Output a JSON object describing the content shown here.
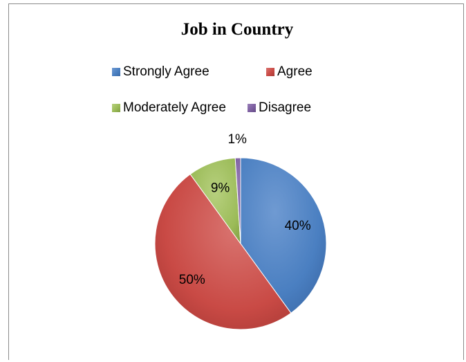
{
  "chart_data": {
    "type": "pie",
    "title": "Job in Country",
    "categories": [
      "Strongly Agree",
      "Agree",
      "Moderately Agree",
      "Disagree"
    ],
    "values": [
      40,
      50,
      9,
      1
    ],
    "labels": [
      "40%",
      "50%",
      "9%",
      "1%"
    ],
    "colors": [
      "#4a7fc1",
      "#c94a45",
      "#9bbb58",
      "#7d5fa0"
    ],
    "legend_position": "top"
  }
}
